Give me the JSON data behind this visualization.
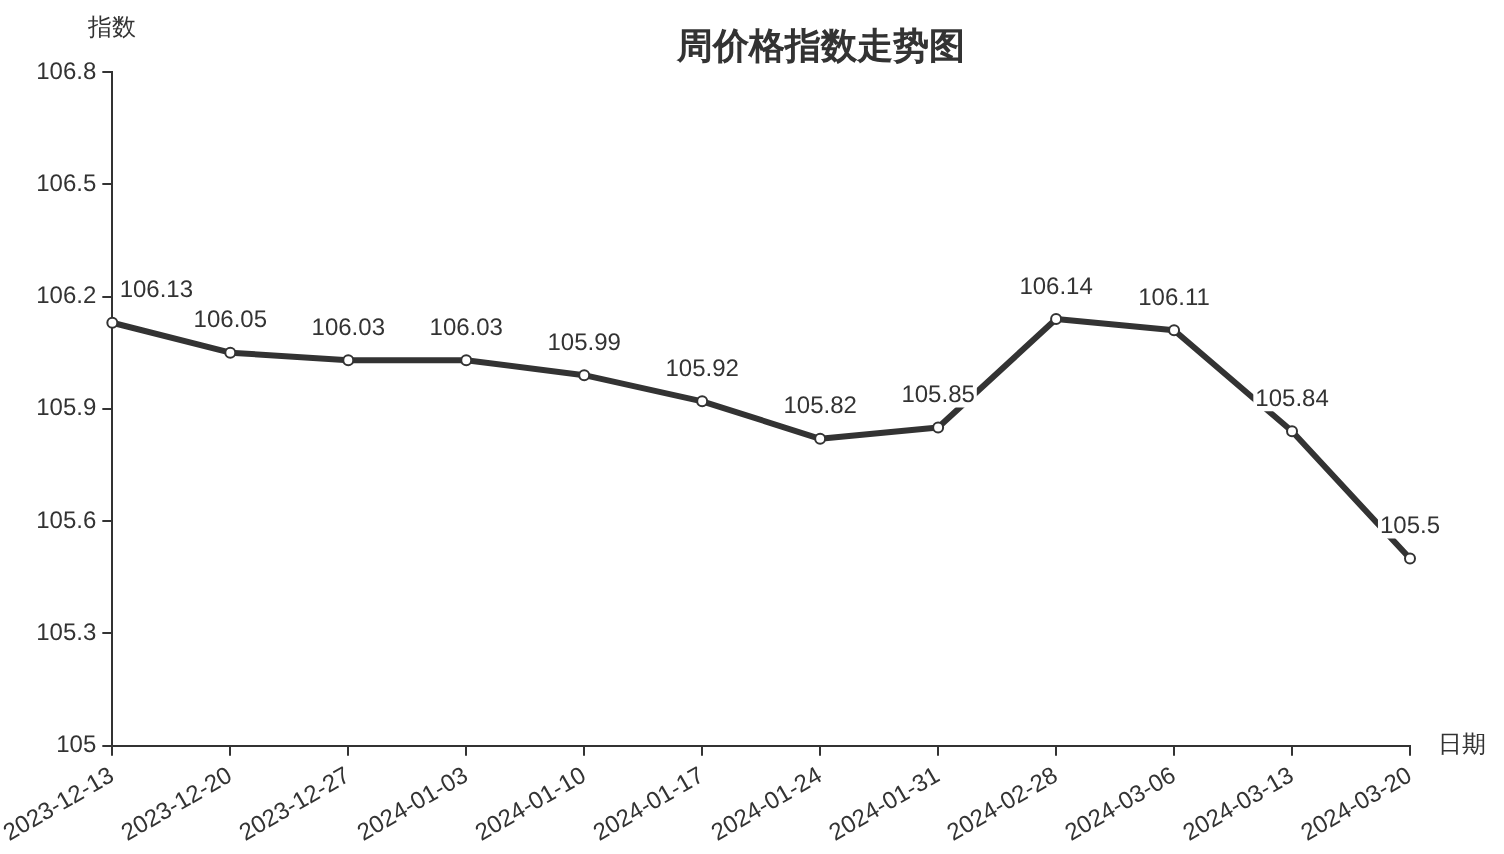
{
  "chart_data": {
    "type": "line",
    "title": "周价格指数走势图",
    "xlabel": "日期",
    "ylabel": "指数",
    "categories": [
      "2023-12-13",
      "2023-12-20",
      "2023-12-27",
      "2024-01-03",
      "2024-01-10",
      "2024-01-17",
      "2024-01-24",
      "2024-01-31",
      "2024-02-28",
      "2024-03-06",
      "2024-03-13",
      "2024-03-20"
    ],
    "series": [
      {
        "color": "#333333",
        "values": [
          106.13,
          106.05,
          106.03,
          106.03,
          105.99,
          105.92,
          105.82,
          105.85,
          106.14,
          106.11,
          105.84,
          105.5
        ]
      }
    ],
    "ylim": [
      105,
      106.8
    ],
    "yticks": [
      105,
      105.3,
      105.6,
      105.9,
      106.2,
      106.5,
      106.8
    ],
    "grid": false,
    "legend": false,
    "marker": "circle",
    "line_style": "solid",
    "data_labels": true
  }
}
